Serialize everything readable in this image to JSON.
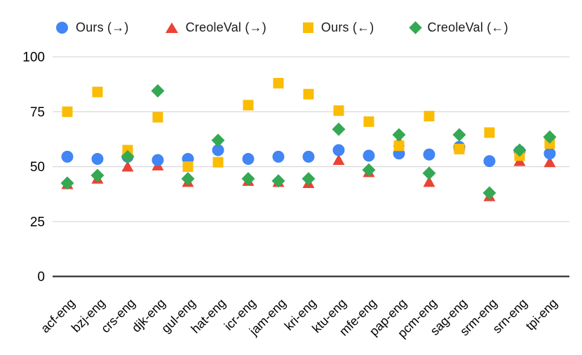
{
  "chart_data": {
    "type": "scatter",
    "title": "",
    "xlabel": "",
    "ylabel": "",
    "categories": [
      "acf-eng",
      "bzj-eng",
      "crs-eng",
      "djk-eng",
      "gul-eng",
      "hat-eng",
      "icr-eng",
      "jam-eng",
      "kri-eng",
      "ktu-eng",
      "mfe-eng",
      "pap-eng",
      "pcm-eng",
      "sag-eng",
      "srm-eng",
      "srn-eng",
      "tpi-eng"
    ],
    "series": [
      {
        "name": "Ours (→)",
        "marker": "circle",
        "color": "#4285F4",
        "values": [
          54.5,
          53.5,
          54.5,
          53,
          53.5,
          57.5,
          53.5,
          54.5,
          54.5,
          57.5,
          55,
          56,
          55.5,
          59,
          52.5,
          57,
          56
        ]
      },
      {
        "name": "CreoleVal (→)",
        "marker": "triangle",
        "color": "#EA4335",
        "values": [
          42,
          44.5,
          50,
          50.5,
          43,
          59,
          43.5,
          43,
          42.5,
          53,
          47.5,
          61.5,
          43,
          59.5,
          36.5,
          52.5,
          52
        ]
      },
      {
        "name": "Ours (←)",
        "marker": "square",
        "color": "#FBBC04",
        "values": [
          75,
          84,
          57.5,
          72.5,
          50,
          52,
          78,
          88,
          83,
          75.5,
          70.5,
          59.5,
          73,
          58,
          65.5,
          55,
          60.5
        ]
      },
      {
        "name": "CreoleVal (←)",
        "marker": "diamond",
        "color": "#34A853",
        "values": [
          42.5,
          46,
          54.5,
          84.5,
          44.5,
          62,
          44.5,
          43.5,
          44.5,
          67,
          48.5,
          64.5,
          47,
          64.5,
          38,
          57.5,
          63.5
        ]
      }
    ],
    "y_axis": {
      "ticks": [
        0,
        25,
        50,
        75,
        100
      ],
      "range": [
        0,
        100
      ]
    },
    "grid": true,
    "legend_position": "top",
    "colors": {
      "gridline": "#d9d9d9",
      "axis_line": "#424242",
      "tick_text": "#000000"
    }
  }
}
